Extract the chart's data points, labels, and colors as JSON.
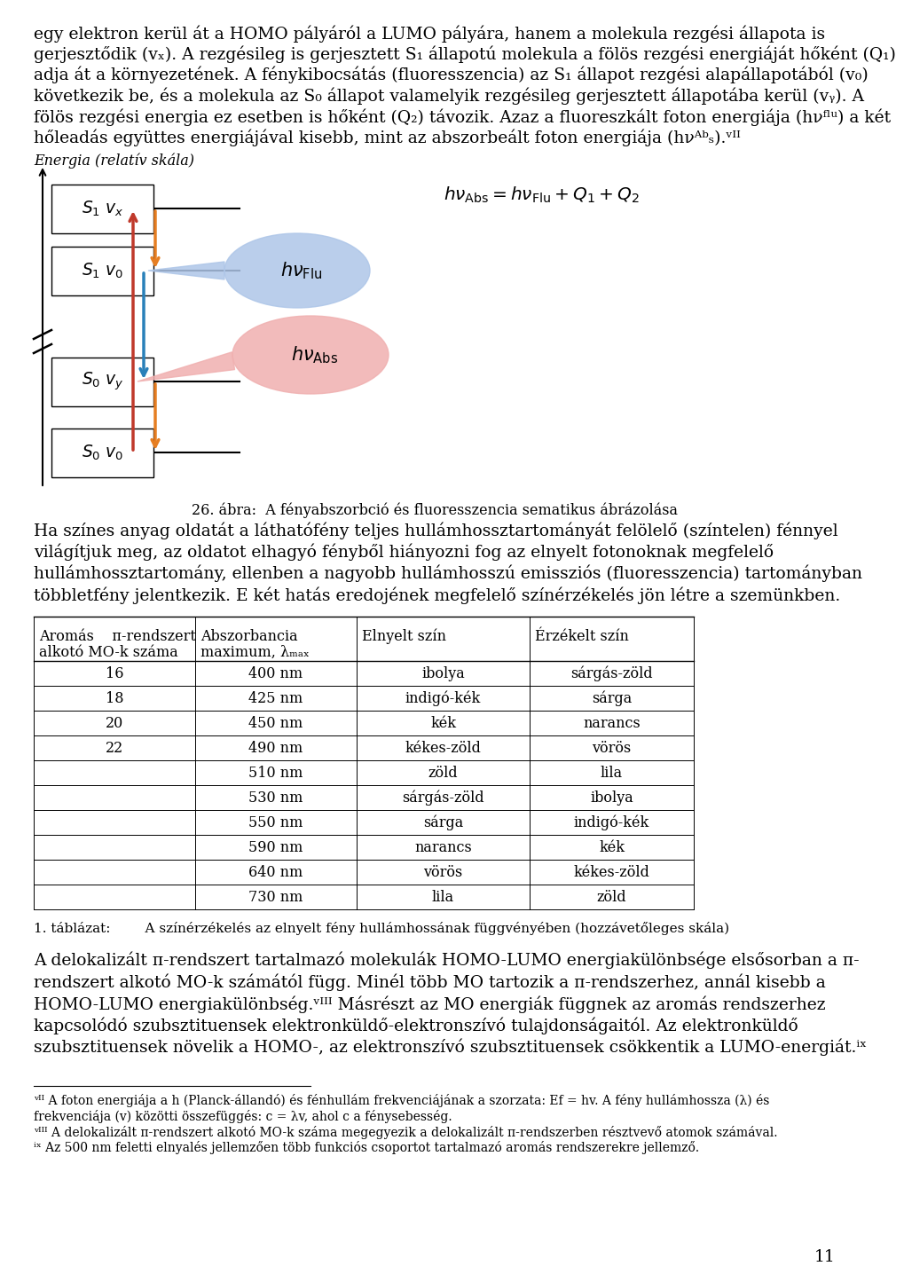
{
  "bg_color": "#ffffff",
  "top_texts": [
    "egy elektron kerül át a HOMO pályáról a LUMO pályára, hanem a molekula rezgési állapota is",
    "gerjesztődik (vₓ). A rezgésileg is gerjesztett S₁ állapotú molekula a fölös rezgési energiáját hőként (Q₁)",
    "adja át a környezetének. A fénykibocsátás (fluoresszencia) az S₁ állapot rezgési alapállapotából (v₀)",
    "következik be, és a molekula az S₀ állapot valamelyik rezgésileg gerjesztett állapotába kerül (vᵧ). A",
    "fölös rezgési energia ez esetben is hőként (Q₂) távozik. Azaz a fluoreszkált foton energiája (hνᶠˡᵘ) a két",
    "hőleadás együttes energiájával kisebb, mint az abszorbeált foton energiája (hνᴬᵇₛ).ᵛᴵᴵ"
  ],
  "energy_label": "Energia (relatív skála)",
  "S1vx_label": "S₁ vₓ",
  "S1v0_label": "S₁ v₀",
  "S0vy_label": "S₀ vᵧ",
  "S0v0_label": "S₀ v₀",
  "caption": "26. ábra:  A fényabszorbció és fluoresszencia sematikus ábrázolása",
  "color_paras": [
    "Ha színes anyag oldatát a láthatófény teljes hullámhossztartományát felölelő (színtelen) fénnyel",
    "világítjuk meg, az oldatot elhagyó fényből hiányozni fog az elnyelt fotonoknak megfelelő",
    "hullámhossztartomány, ellenben a nagyobb hullámhosszú emissziós (fluoresszencia) tartományban",
    "többletfény jelentkezik. E két hatás eredojének megfelelő színérzékelés jön létre a szemünkben."
  ],
  "table_headers": [
    [
      "Aromás    π-rendszert",
      "alkotó MO-k száma"
    ],
    [
      "Abszorbancia",
      "maximum, λₘₐₓ"
    ],
    [
      "Elnyelt szín",
      ""
    ],
    [
      "Érzékelt szín",
      ""
    ]
  ],
  "table_data": [
    [
      "16",
      "400 nm",
      "ibolya",
      "sárgás-zöld"
    ],
    [
      "18",
      "425 nm",
      "indigó-kék",
      "sárga"
    ],
    [
      "20",
      "450 nm",
      "kék",
      "narancs"
    ],
    [
      "22",
      "490 nm",
      "kékes-zöld",
      "vörös"
    ],
    [
      "",
      "510 nm",
      "zöld",
      "lila"
    ],
    [
      "",
      "530 nm",
      "sárgás-zöld",
      "ibolya"
    ],
    [
      "",
      "550 nm",
      "sárga",
      "indigó-kék"
    ],
    [
      "",
      "590 nm",
      "narancs",
      "kék"
    ],
    [
      "",
      "640 nm",
      "vörös",
      "kékes-zöld"
    ],
    [
      "",
      "730 nm",
      "lila",
      "zöld"
    ]
  ],
  "table_caption": "1. táblázat:        A színérzékelés az elnyelt fény hullámhossának függvényében (hozzávetőleges skála)",
  "final_paras": [
    "A delokalizált π-rendszert tartalmazó molekulák HOMO-LUMO energiakülönbsége elsősorban a π-",
    "rendszert alkotó MO-k számától függ. Minél több MO tartozik a π-rendszerhez, annál kisebb a",
    "HOMO-LUMO energiakülönbség.ᵛᴵᴵᴵ Másrészt az MO energiák függnek az aromás rendszerhez",
    "kapcsolódó szubsztituensek elektronküldő-elektronszívó tulajdonságaitól. Az elektronküldő",
    "szubsztituensek növelik a HOMO-, az elektronszívó szubsztituensek csökkentik a LUMO-energiát.ⁱˣ"
  ],
  "footnote_line": true,
  "footnotes": [
    "ᵛᴵᴵ A foton energiája a h (Planck-állandó) és fénhullám frekvenciájának a szorzata: Ef = hv. A fény hullámhossza (λ) és",
    "frekvenciája (v) közötti összefüggés: c = λv, ahol c a fénysebesség.",
    "ᵛᴵᴵᴵ A delokalizált π-rendszert alkotó MO-k száma megegyezik a delokalizált π-rendszerben résztvevő atomok számával.",
    "ⁱˣ Az 500 nm feletti elnyalés jellemzően több funkciós csoportot tartalmazó aromás rendszerekre jellemző."
  ],
  "page_number": "11",
  "arrow_abs_color": "#c0392b",
  "arrow_flu_color": "#2980b9",
  "arrow_heat_color": "#e67e22",
  "bubble_flu_color": "#aec6e8",
  "bubble_abs_color": "#f0b0b0"
}
